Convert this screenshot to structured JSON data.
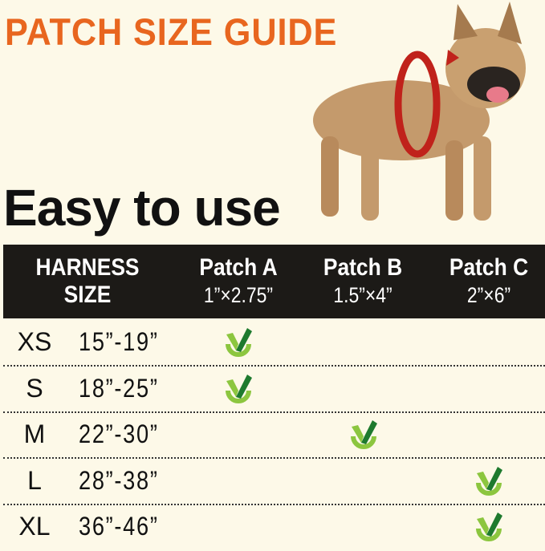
{
  "title": "PATCH SIZE GUIDE",
  "subtitle": "Easy to use",
  "colors": {
    "title": "#e8661f",
    "header_bg": "#1c1a17",
    "background": "#fdf9e8",
    "check_dark": "#1e7a2e",
    "check_light": "#8cc63f"
  },
  "table": {
    "headers": [
      {
        "line1": "HARNESS",
        "line2": "SIZE"
      },
      {
        "line1": "Patch A",
        "line2": "1”×2.75”"
      },
      {
        "line1": "Patch B",
        "line2": "1.5”×4”"
      },
      {
        "line1": "Patch C",
        "line2": "2”×6”"
      }
    ],
    "rows": [
      {
        "size": "XS",
        "range": "15”-19”",
        "patch": "A"
      },
      {
        "size": "S",
        "range": "18”-25”",
        "patch": "A"
      },
      {
        "size": "M",
        "range": "22”-30”",
        "patch": "B"
      },
      {
        "size": "L",
        "range": "28”-38”",
        "patch": "C"
      },
      {
        "size": "XL",
        "range": "36”-46”",
        "patch": "C"
      }
    ]
  }
}
